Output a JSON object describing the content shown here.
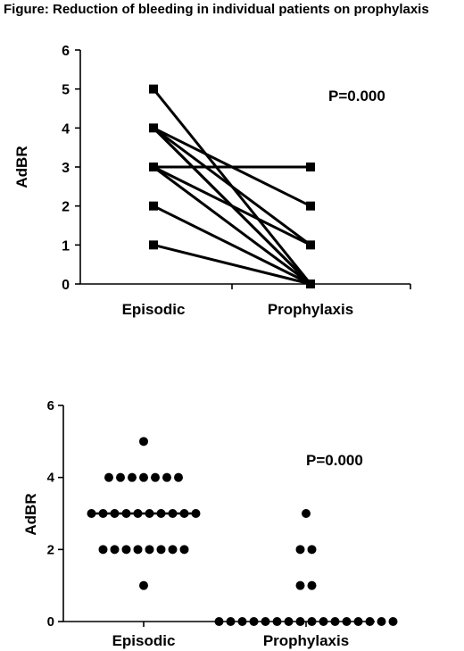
{
  "figure_title": "Figure: Reduction of bleeding in individual patients on prophylaxis",
  "chart_data": [
    {
      "type": "line",
      "categories": [
        "Episodic",
        "Prophylaxis"
      ],
      "ylabel": "AdBR",
      "ylim": [
        0,
        6
      ],
      "yticks": [
        "0",
        "1",
        "2",
        "3",
        "4",
        "5",
        "6"
      ],
      "annotation": "P=0.000",
      "marker": "square",
      "color": "#000000",
      "pairs": [
        [
          5,
          0
        ],
        [
          4,
          2
        ],
        [
          4,
          1
        ],
        [
          4,
          0
        ],
        [
          4,
          0
        ],
        [
          3,
          3
        ],
        [
          3,
          1
        ],
        [
          3,
          0
        ],
        [
          2,
          0
        ],
        [
          1,
          0
        ]
      ]
    },
    {
      "type": "scatter",
      "categories": [
        "Episodic",
        "Prophylaxis"
      ],
      "ylabel": "AdBR",
      "ylim": [
        0,
        6
      ],
      "yticks": [
        "0",
        "2",
        "4",
        "6"
      ],
      "annotation": "P=0.000",
      "marker": "circle",
      "color": "#000000",
      "median": [
        3,
        null
      ],
      "groups": [
        {
          "category": "Episodic",
          "values": [
            5,
            4,
            4,
            4,
            4,
            4,
            4,
            4,
            3,
            3,
            3,
            3,
            3,
            3,
            3,
            3,
            3,
            3,
            2,
            2,
            2,
            2,
            2,
            2,
            2,
            2,
            1
          ]
        },
        {
          "category": "Prophylaxis",
          "values": [
            3,
            2,
            2,
            1,
            1,
            0,
            0,
            0,
            0,
            0,
            0,
            0,
            0,
            0,
            0,
            0,
            0,
            0,
            0,
            0,
            0
          ]
        }
      ]
    }
  ]
}
